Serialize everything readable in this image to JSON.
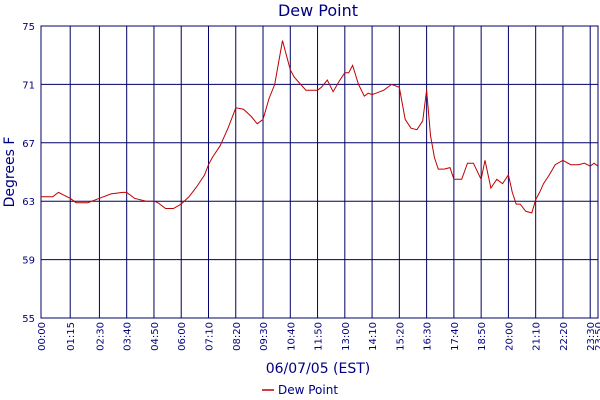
{
  "chart_data": {
    "type": "line",
    "title": "Dew Point",
    "xlabel": "06/07/05 (EST)",
    "ylabel": "Degrees F",
    "ylim": [
      55,
      75
    ],
    "yticks": [
      55,
      59,
      63,
      67,
      71,
      75
    ],
    "x_range_minutes": [
      0,
      1430
    ],
    "xtick_labels": [
      "00:00",
      "01:15",
      "02:30",
      "03:40",
      "04:50",
      "06:00",
      "07:10",
      "08:20",
      "09:30",
      "10:40",
      "11:50",
      "13:00",
      "14:10",
      "15:20",
      "16:30",
      "17:40",
      "18:50",
      "20:00",
      "21:10",
      "22:20",
      "23:30",
      "23:50"
    ],
    "xtick_minutes": [
      0,
      75,
      150,
      220,
      290,
      360,
      430,
      500,
      570,
      640,
      710,
      780,
      850,
      920,
      990,
      1060,
      1130,
      1200,
      1270,
      1340,
      1410,
      1430
    ],
    "grid": true,
    "legend_position": "bottom-center",
    "colors": {
      "series": "#bf0000",
      "grid": "#000066",
      "text": "#00007f"
    },
    "series": [
      {
        "name": "Dew Point",
        "x": [
          "00:00",
          "00:30",
          "00:45",
          "01:00",
          "01:15",
          "01:30",
          "02:00",
          "02:30",
          "03:00",
          "03:30",
          "03:40",
          "04:00",
          "04:30",
          "04:50",
          "05:00",
          "05:20",
          "05:40",
          "06:00",
          "06:20",
          "06:40",
          "07:00",
          "07:10",
          "07:20",
          "07:40",
          "08:00",
          "08:20",
          "08:40",
          "09:00",
          "09:15",
          "09:30",
          "09:45",
          "10:00",
          "10:10",
          "10:20",
          "10:30",
          "10:40",
          "10:50",
          "11:00",
          "11:20",
          "11:35",
          "11:50",
          "12:00",
          "12:15",
          "12:30",
          "12:45",
          "13:00",
          "13:10",
          "13:20",
          "13:35",
          "13:50",
          "14:00",
          "14:10",
          "14:20",
          "14:40",
          "15:00",
          "15:20",
          "15:35",
          "15:50",
          "16:05",
          "16:20",
          "16:30",
          "16:40",
          "16:50",
          "17:00",
          "17:15",
          "17:30",
          "17:40",
          "17:50",
          "18:00",
          "18:15",
          "18:30",
          "18:50",
          "19:00",
          "19:15",
          "19:30",
          "19:45",
          "20:00",
          "20:10",
          "20:20",
          "20:30",
          "20:45",
          "21:00",
          "21:10",
          "21:20",
          "21:30",
          "21:45",
          "22:00",
          "22:20",
          "22:40",
          "23:00",
          "23:15",
          "23:30",
          "23:40",
          "23:50"
        ],
        "y": [
          63.3,
          63.3,
          63.6,
          63.4,
          63.2,
          62.9,
          62.9,
          63.2,
          63.5,
          63.6,
          63.6,
          63.2,
          63.0,
          63.0,
          62.9,
          62.5,
          62.5,
          62.8,
          63.3,
          64.0,
          64.8,
          65.5,
          66.0,
          66.8,
          68.0,
          69.4,
          69.3,
          68.8,
          68.3,
          68.6,
          70.0,
          71.0,
          72.5,
          74.0,
          73.0,
          72.0,
          71.5,
          71.2,
          70.6,
          70.6,
          70.6,
          70.8,
          71.3,
          70.5,
          71.2,
          71.8,
          71.8,
          72.3,
          71.0,
          70.2,
          70.4,
          70.3,
          70.4,
          70.6,
          71.0,
          70.8,
          68.6,
          68.0,
          67.9,
          68.5,
          70.6,
          67.5,
          66.0,
          65.2,
          65.2,
          65.3,
          64.5,
          64.5,
          64.5,
          65.6,
          65.6,
          64.5,
          65.8,
          63.9,
          64.5,
          64.2,
          64.8,
          63.6,
          62.8,
          62.8,
          62.3,
          62.2,
          63.1,
          63.6,
          64.2,
          64.8,
          65.5,
          65.8,
          65.5,
          65.5,
          65.6,
          65.4,
          65.6,
          65.4
        ]
      }
    ]
  }
}
